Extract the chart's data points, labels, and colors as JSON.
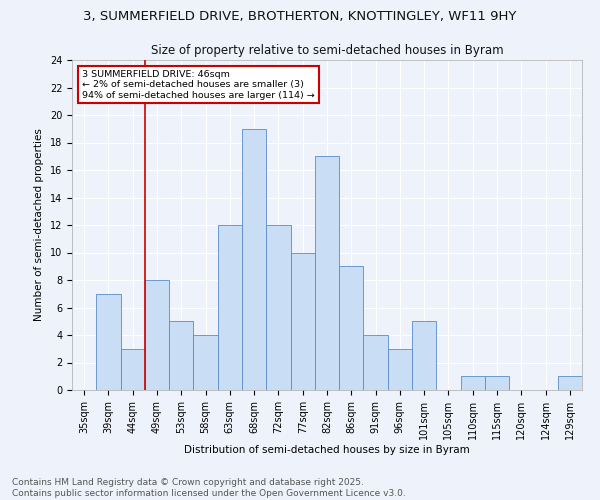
{
  "title1": "3, SUMMERFIELD DRIVE, BROTHERTON, KNOTTINGLEY, WF11 9HY",
  "title2": "Size of property relative to semi-detached houses in Byram",
  "xlabel": "Distribution of semi-detached houses by size in Byram",
  "ylabel": "Number of semi-detached properties",
  "bins": [
    "35sqm",
    "39sqm",
    "44sqm",
    "49sqm",
    "53sqm",
    "58sqm",
    "63sqm",
    "68sqm",
    "72sqm",
    "77sqm",
    "82sqm",
    "86sqm",
    "91sqm",
    "96sqm",
    "101sqm",
    "105sqm",
    "110sqm",
    "115sqm",
    "120sqm",
    "124sqm",
    "129sqm"
  ],
  "values": [
    0,
    7,
    3,
    8,
    5,
    4,
    12,
    19,
    12,
    10,
    17,
    9,
    4,
    3,
    5,
    0,
    1,
    1,
    0,
    0,
    1
  ],
  "bar_color": "#c9ddf5",
  "bar_edge_color": "#5b8bc9",
  "annotation_text": "3 SUMMERFIELD DRIVE: 46sqm\n← 2% of semi-detached houses are smaller (3)\n94% of semi-detached houses are larger (114) →",
  "annotation_box_color": "#ffffff",
  "annotation_box_edge": "#cc0000",
  "vline_color": "#cc0000",
  "vline_x": 2.5,
  "ylim": [
    0,
    24
  ],
  "yticks": [
    0,
    2,
    4,
    6,
    8,
    10,
    12,
    14,
    16,
    18,
    20,
    22,
    24
  ],
  "footer": "Contains HM Land Registry data © Crown copyright and database right 2025.\nContains public sector information licensed under the Open Government Licence v3.0.",
  "background_color": "#eef2fa",
  "grid_color": "#ffffff",
  "title1_fontsize": 9.5,
  "title2_fontsize": 8.5,
  "axis_fontsize": 7.5,
  "tick_fontsize": 7,
  "footer_fontsize": 6.5
}
